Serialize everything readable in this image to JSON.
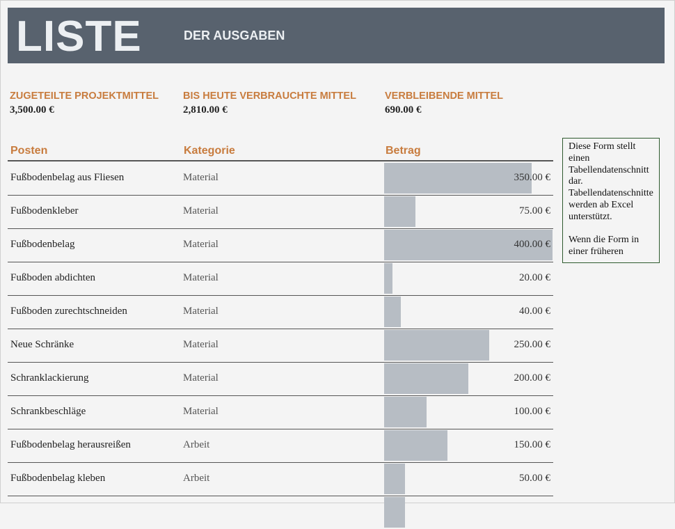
{
  "header": {
    "title": "LISTE",
    "subtitle": "DER AUSGABEN"
  },
  "summary": [
    {
      "label": "ZUGETEILTE PROJEKTMITTEL",
      "value": "3,500.00 €"
    },
    {
      "label": "BIS HEUTE VERBRAUCHTE MITTEL",
      "value": "2,810.00 €"
    },
    {
      "label": "VERBLEIBENDE MITTEL",
      "value": "690.00 €"
    }
  ],
  "columns": [
    "Posten",
    "Kategorie",
    "Betrag"
  ],
  "rows": [
    {
      "posten": "Fußbodenbelag aus Fliesen",
      "kategorie": "Material",
      "betrag": "350.00 €",
      "value": 350
    },
    {
      "posten": "Fußbodenkleber",
      "kategorie": "Material",
      "betrag": "75.00 €",
      "value": 75
    },
    {
      "posten": "Fußbodenbelag",
      "kategorie": "Material",
      "betrag": "400.00 €",
      "value": 400
    },
    {
      "posten": "Fußboden abdichten",
      "kategorie": "Material",
      "betrag": "20.00 €",
      "value": 20
    },
    {
      "posten": "Fußboden zurechtschneiden",
      "kategorie": "Material",
      "betrag": "40.00 €",
      "value": 40
    },
    {
      "posten": "Neue Schränke",
      "kategorie": "Material",
      "betrag": "250.00 €",
      "value": 250
    },
    {
      "posten": "Schranklackierung",
      "kategorie": "Material",
      "betrag": "200.00 €",
      "value": 200
    },
    {
      "posten": "Schrankbeschläge",
      "kategorie": "Material",
      "betrag": "100.00 €",
      "value": 100
    },
    {
      "posten": "Fußbodenbelag herausreißen",
      "kategorie": "Arbeit",
      "betrag": "150.00 €",
      "value": 150
    },
    {
      "posten": "Fußbodenbelag kleben",
      "kategorie": "Arbeit",
      "betrag": "50.00 €",
      "value": 50
    }
  ],
  "bar_max": 400,
  "note": "Diese Form stellt einen Tabellendatenschnitt dar. Tabellendatenschnitte werden ab Excel unterstützt.\n\nWenn die Form in einer früheren",
  "colors": {
    "header_bg": "#58626e",
    "accent": "#c87c3e",
    "bar": "#b7bdc4"
  }
}
